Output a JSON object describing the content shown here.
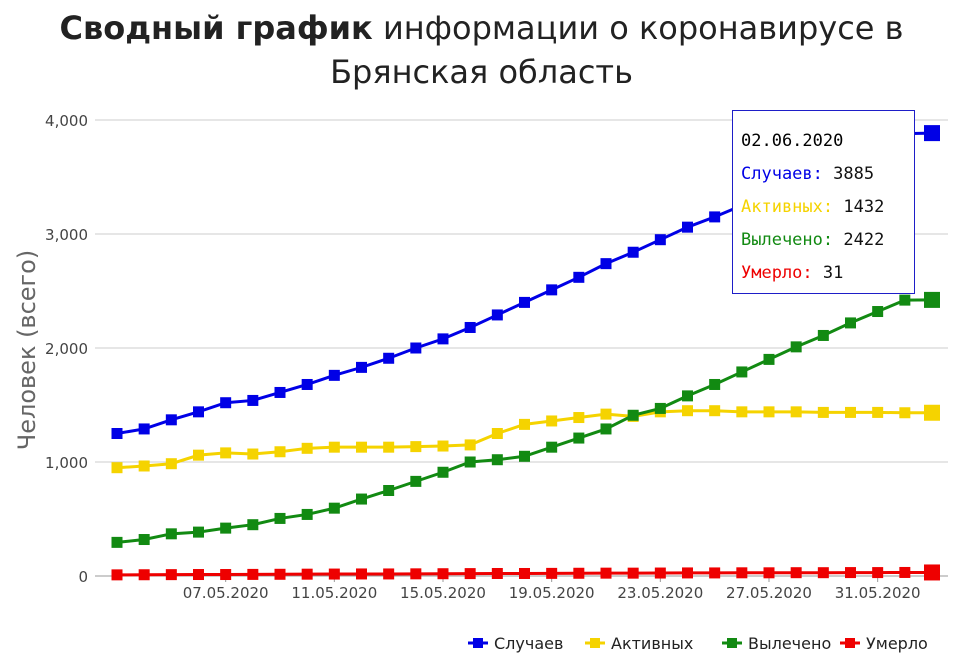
{
  "title": {
    "bold": "Сводный график",
    "rest": "информации о коронавирусе в",
    "line2": "Брянская область"
  },
  "colors": {
    "cases": "#0000e6",
    "active": "#f5d300",
    "recovered": "#128a12",
    "deaths": "#ee0000",
    "grid": "#cccccc",
    "axis_text": "#444444"
  },
  "tooltip": {
    "date": "02.06.2020",
    "rows": [
      {
        "label": "Случаев:",
        "value": "3885",
        "color": "#0000e6"
      },
      {
        "label": "Активных:",
        "value": "1432",
        "color": "#f5d300"
      },
      {
        "label": "Вылечено:",
        "value": "2422",
        "color": "#128a12"
      },
      {
        "label": "Умерло:",
        "value": "31",
        "color": "#ee0000"
      }
    ]
  },
  "chart_data": {
    "type": "line",
    "ylabel": "Человек (всего)",
    "ylim": [
      0,
      4000
    ],
    "yticks": [
      0,
      1000,
      2000,
      3000,
      4000
    ],
    "ytick_labels": [
      "0",
      "1,000",
      "2,000",
      "3,000",
      "4,000"
    ],
    "x": [
      "03.05.2020",
      "04.05.2020",
      "05.05.2020",
      "06.05.2020",
      "07.05.2020",
      "08.05.2020",
      "09.05.2020",
      "10.05.2020",
      "11.05.2020",
      "12.05.2020",
      "13.05.2020",
      "14.05.2020",
      "15.05.2020",
      "16.05.2020",
      "17.05.2020",
      "18.05.2020",
      "19.05.2020",
      "20.05.2020",
      "21.05.2020",
      "22.05.2020",
      "23.05.2020",
      "24.05.2020",
      "25.05.2020",
      "26.05.2020",
      "27.05.2020",
      "28.05.2020",
      "29.05.2020",
      "30.05.2020",
      "31.05.2020",
      "01.06.2020",
      "02.06.2020"
    ],
    "xtick_labels": [
      "07.05.2020",
      "11.05.2020",
      "15.05.2020",
      "19.05.2020",
      "23.05.2020",
      "27.05.2020",
      "31.05.2020"
    ],
    "grid": true,
    "legend_position": "bottom-right",
    "series": [
      {
        "name": "Случаев",
        "color": "#0000e6",
        "values": [
          1250,
          1290,
          1370,
          1440,
          1520,
          1540,
          1610,
          1680,
          1760,
          1830,
          1910,
          2000,
          2080,
          2180,
          2290,
          2400,
          2510,
          2620,
          2740,
          2840,
          2950,
          3060,
          3150,
          3250,
          3360,
          3470,
          3580,
          3680,
          3780,
          3880,
          3885
        ]
      },
      {
        "name": "Активных",
        "color": "#f5d300",
        "values": [
          950,
          965,
          985,
          1060,
          1080,
          1070,
          1090,
          1120,
          1130,
          1130,
          1130,
          1135,
          1140,
          1150,
          1250,
          1330,
          1360,
          1390,
          1420,
          1400,
          1440,
          1450,
          1450,
          1440,
          1440,
          1440,
          1435,
          1435,
          1435,
          1432,
          1432
        ]
      },
      {
        "name": "Вылечено",
        "color": "#128a12",
        "values": [
          295,
          320,
          370,
          385,
          420,
          450,
          505,
          540,
          595,
          675,
          750,
          830,
          910,
          1000,
          1020,
          1050,
          1130,
          1210,
          1290,
          1410,
          1470,
          1580,
          1680,
          1790,
          1900,
          2010,
          2110,
          2220,
          2320,
          2420,
          2422
        ]
      },
      {
        "name": "Умерло",
        "color": "#ee0000",
        "values": [
          10,
          11,
          12,
          13,
          13,
          14,
          15,
          16,
          17,
          18,
          18,
          19,
          20,
          21,
          22,
          22,
          23,
          24,
          25,
          25,
          26,
          27,
          27,
          28,
          28,
          29,
          29,
          30,
          30,
          31,
          31
        ]
      }
    ]
  }
}
